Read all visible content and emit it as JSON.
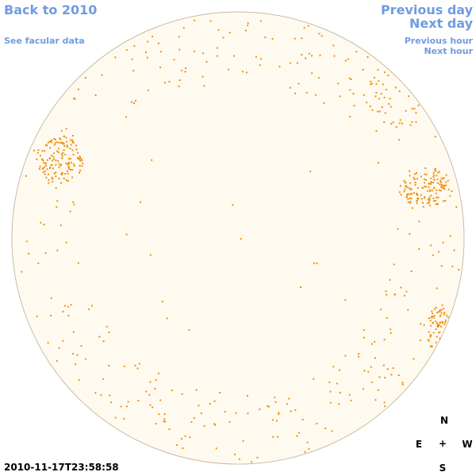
{
  "nav": {
    "back_label": "Back to 2010",
    "facular_label": "See facular data",
    "prev_day_label": "Previous day",
    "next_day_label": "Next day",
    "prev_hour_label": "Previous hour",
    "next_hour_label": "Next hour"
  },
  "compass": {
    "north": "N",
    "east": "E",
    "center": "+",
    "west": "W",
    "south": "S"
  },
  "timestamp": "2010-11-17T23:58:58",
  "colors": {
    "link": "#6f9ce0",
    "disk_fill": "#fffaf0",
    "disk_edge": "#c9bba5",
    "plage": "#f0900a"
  }
}
